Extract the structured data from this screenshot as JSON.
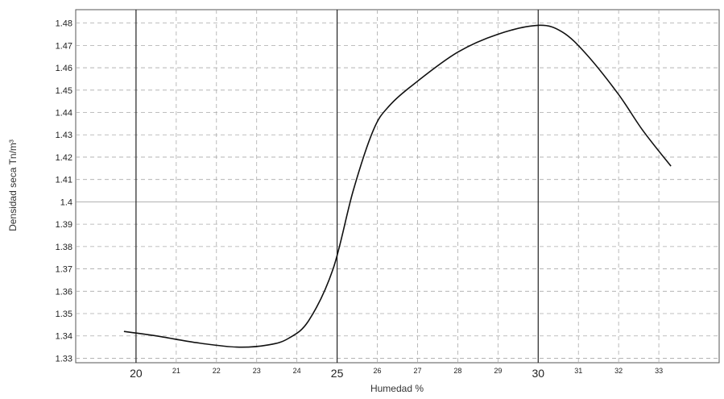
{
  "chart_data": {
    "type": "line",
    "title": "",
    "xlabel": "Humedad %",
    "ylabel": "Densidad seca Tn/m³",
    "xlim": [
      18.5,
      34.5
    ],
    "ylim": [
      1.328,
      1.486
    ],
    "grid": true,
    "legend": "none",
    "x_ticks": [
      {
        "value": 20,
        "label": "20",
        "major": true
      },
      {
        "value": 21,
        "label": "21",
        "major": false
      },
      {
        "value": 22,
        "label": "22",
        "major": false
      },
      {
        "value": 23,
        "label": "23",
        "major": false
      },
      {
        "value": 24,
        "label": "24",
        "major": false
      },
      {
        "value": 25,
        "label": "25",
        "major": true
      },
      {
        "value": 26,
        "label": "26",
        "major": false
      },
      {
        "value": 27,
        "label": "27",
        "major": false
      },
      {
        "value": 28,
        "label": "28",
        "major": false
      },
      {
        "value": 29,
        "label": "29",
        "major": false
      },
      {
        "value": 30,
        "label": "30",
        "major": true
      },
      {
        "value": 31,
        "label": "31",
        "major": false
      },
      {
        "value": 32,
        "label": "32",
        "major": false
      },
      {
        "value": 33,
        "label": "33",
        "major": false
      }
    ],
    "y_ticks": [
      {
        "value": 1.33,
        "label": "1.33"
      },
      {
        "value": 1.34,
        "label": "1.34"
      },
      {
        "value": 1.35,
        "label": "1.35"
      },
      {
        "value": 1.36,
        "label": "1.36"
      },
      {
        "value": 1.37,
        "label": "1.37"
      },
      {
        "value": 1.38,
        "label": "1.38"
      },
      {
        "value": 1.39,
        "label": "1.39"
      },
      {
        "value": 1.4,
        "label": "1.4"
      },
      {
        "value": 1.41,
        "label": "1.41"
      },
      {
        "value": 1.42,
        "label": "1.42"
      },
      {
        "value": 1.43,
        "label": "1.43"
      },
      {
        "value": 1.44,
        "label": "1.44"
      },
      {
        "value": 1.45,
        "label": "1.45"
      },
      {
        "value": 1.46,
        "label": "1.46"
      },
      {
        "value": 1.47,
        "label": "1.47"
      },
      {
        "value": 1.48,
        "label": "1.48"
      }
    ],
    "series": [
      {
        "x": [
          19.7,
          20.5,
          21.5,
          22.5,
          23.3,
          23.8,
          24.3,
          24.9,
          25.4,
          25.9,
          26.3,
          27.0,
          28.0,
          29.0,
          30.0,
          30.6,
          31.2,
          32.0,
          32.6,
          33.3
        ],
        "y": [
          1.342,
          1.34,
          1.337,
          1.335,
          1.336,
          1.339,
          1.347,
          1.37,
          1.405,
          1.432,
          1.443,
          1.454,
          1.467,
          1.475,
          1.479,
          1.476,
          1.466,
          1.448,
          1.432,
          1.416
        ]
      }
    ]
  }
}
